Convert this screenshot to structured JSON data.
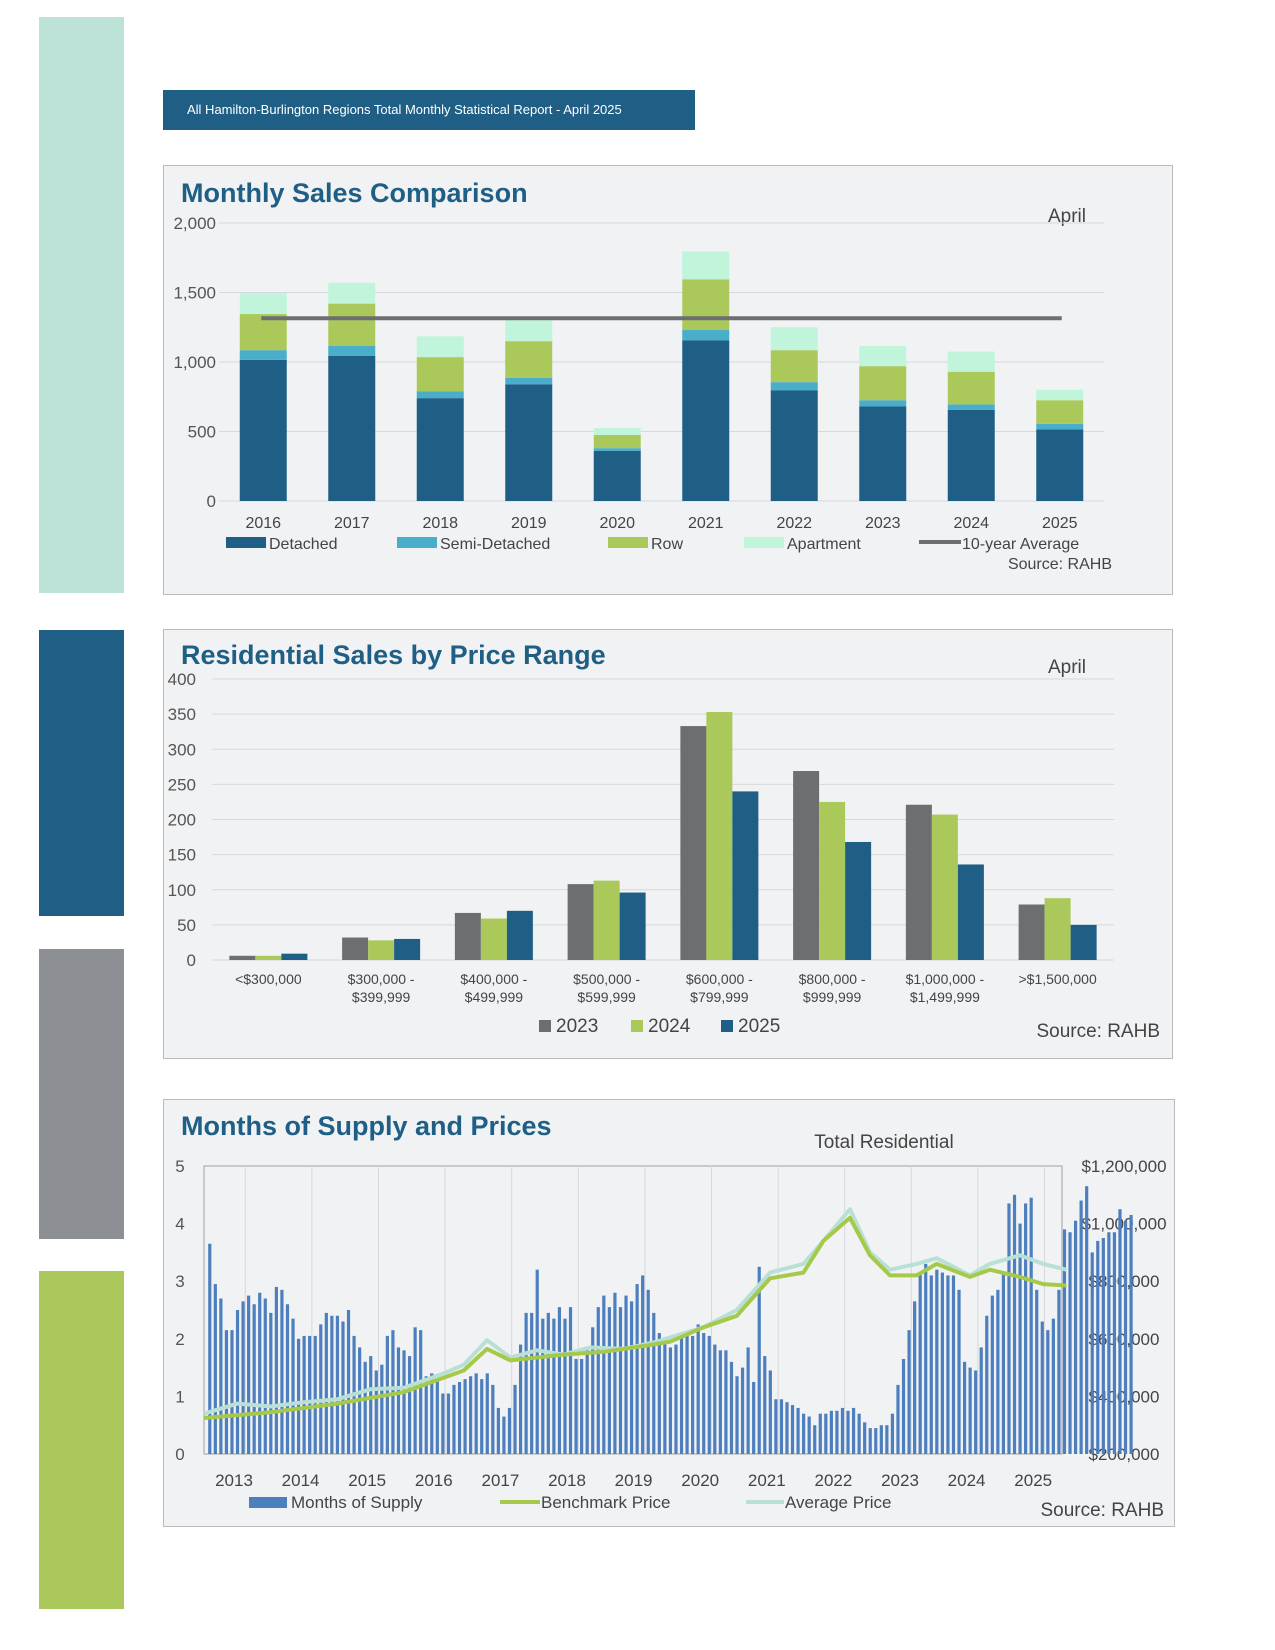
{
  "header": {
    "title": "All Hamilton-Burlington Regions Total Monthly Statistical Report - April 2025"
  },
  "colors": {
    "side_bars": [
      "#bde3d8",
      "#1f5f86",
      "#8c9094",
      "#abc95a"
    ],
    "detached": "#1f5f86",
    "semi_detached": "#4aaecb",
    "row": "#abc95a",
    "apartment": "#c0f5dc",
    "average_line": "#6d6e70",
    "y2023": "#6d6e70",
    "y2024": "#abc95a",
    "y2025": "#1f5f86",
    "supply": "#4d7fbe",
    "benchmark": "#a6c94a",
    "average_price": "#b8e0d4"
  },
  "panels": {
    "sales": {
      "title": "Monthly Sales Comparison",
      "subtitle": "April",
      "source": "Source: RAHB"
    },
    "price_range": {
      "title": "Residential Sales by Price Range",
      "subtitle": "April",
      "source": "Source: RAHB"
    },
    "supply": {
      "title": "Months of Supply and Prices",
      "subtitle": "Total Residential",
      "source": "Source: RAHB"
    }
  },
  "chart_data": [
    {
      "type": "bar",
      "stacked": true,
      "title": "Monthly Sales Comparison",
      "subtitle": "April",
      "categories": [
        "2016",
        "2017",
        "2018",
        "2019",
        "2020",
        "2021",
        "2022",
        "2023",
        "2024",
        "2025"
      ],
      "series": [
        {
          "name": "Detached",
          "values": [
            1015,
            1045,
            740,
            840,
            360,
            1155,
            795,
            680,
            655,
            515
          ]
        },
        {
          "name": "Semi-Detached",
          "values": [
            70,
            70,
            50,
            45,
            20,
            75,
            60,
            45,
            40,
            40
          ]
        },
        {
          "name": "Row",
          "values": [
            260,
            305,
            245,
            265,
            95,
            365,
            230,
            245,
            235,
            170
          ]
        },
        {
          "name": "Apartment",
          "values": [
            150,
            150,
            150,
            150,
            50,
            200,
            165,
            145,
            145,
            75
          ]
        }
      ],
      "average": {
        "name": "10-year Average",
        "value": 1315
      },
      "ylim": [
        0,
        2000
      ],
      "yticks": [
        0,
        500,
        1000,
        1500,
        2000
      ],
      "ytick_labels": [
        "0",
        "500",
        "1,000",
        "1,500",
        "2,000"
      ],
      "legend": "bottom",
      "grid": true,
      "source": "Source: RAHB"
    },
    {
      "type": "bar",
      "title": "Residential Sales by Price Range",
      "subtitle": "April",
      "categories": [
        "<$300,000",
        "$300,000 -\n$399,999",
        "$400,000 -\n$499,999",
        "$500,000 -\n$599,999",
        "$600,000 -\n$799,999",
        "$800,000 -\n$999,999",
        "$1,000,000 -\n$1,499,999",
        ">$1,500,000"
      ],
      "series": [
        {
          "name": "2023",
          "values": [
            6,
            32,
            67,
            108,
            333,
            269,
            221,
            79
          ]
        },
        {
          "name": "2024",
          "values": [
            6,
            28,
            59,
            113,
            353,
            225,
            207,
            88
          ]
        },
        {
          "name": "2025",
          "values": [
            9,
            30,
            70,
            96,
            240,
            168,
            136,
            50
          ]
        }
      ],
      "ylim": [
        0,
        400
      ],
      "yticks": [
        0,
        50,
        100,
        150,
        200,
        250,
        300,
        350,
        400
      ],
      "legend": "bottom",
      "grid": true,
      "source": "Source: RAHB"
    },
    {
      "type": "bar+line",
      "title": "Months of Supply and Prices",
      "subtitle": "Total Residential",
      "x_start": "2012-12",
      "x_labels": [
        "2013",
        "2014",
        "2015",
        "2016",
        "2017",
        "2018",
        "2019",
        "2020",
        "2021",
        "2022",
        "2023",
        "2024",
        "2025"
      ],
      "series": [
        {
          "name": "Months of Supply",
          "type": "bar",
          "axis": "left",
          "values": [
            3.65,
            2.95,
            2.7,
            2.15,
            2.15,
            2.5,
            2.65,
            2.75,
            2.6,
            2.8,
            2.7,
            2.45,
            2.9,
            2.85,
            2.6,
            2.35,
            2.0,
            2.05,
            2.05,
            2.05,
            2.25,
            2.45,
            2.4,
            2.4,
            2.3,
            2.5,
            2.05,
            1.85,
            1.6,
            1.7,
            1.45,
            1.55,
            2.05,
            2.15,
            1.85,
            1.8,
            1.7,
            2.2,
            2.15,
            1.35,
            1.4,
            1.3,
            1.05,
            1.05,
            1.2,
            1.25,
            1.3,
            1.35,
            1.4,
            1.3,
            1.4,
            1.2,
            0.8,
            0.65,
            0.8,
            1.2,
            1.9,
            2.45,
            2.45,
            3.2,
            2.35,
            2.45,
            2.35,
            2.55,
            2.35,
            2.55,
            1.65,
            1.65,
            1.8,
            2.2,
            2.55,
            2.75,
            2.55,
            2.8,
            2.55,
            2.75,
            2.65,
            2.95,
            3.1,
            2.85,
            2.45,
            2.1,
            1.95,
            1.85,
            1.9,
            2.05,
            2.1,
            2.05,
            2.25,
            2.1,
            2.05,
            1.9,
            1.8,
            1.8,
            1.6,
            1.35,
            1.5,
            1.85,
            1.25,
            3.25,
            1.7,
            1.45,
            0.95,
            0.95,
            0.9,
            0.85,
            0.8,
            0.7,
            0.65,
            0.5,
            0.7,
            0.7,
            0.75,
            0.75,
            0.8,
            0.75,
            0.8,
            0.7,
            0.55,
            0.45,
            0.45,
            0.5,
            0.5,
            0.7,
            1.2,
            1.65,
            2.15,
            2.65,
            3.15,
            3.3,
            3.1,
            3.2,
            3.15,
            3.1,
            3.1,
            2.85,
            1.6,
            1.5,
            1.45,
            1.85,
            2.4,
            2.75,
            2.85,
            3.15,
            4.35,
            4.5,
            4.0,
            4.35,
            4.45,
            2.85,
            2.3,
            2.15,
            2.35,
            2.85,
            3.9,
            3.85,
            4.05,
            4.4,
            4.65,
            3.5,
            3.7,
            3.75,
            3.85,
            3.85,
            4.25,
            4.05,
            4.15
          ]
        },
        {
          "name": "Benchmark Price",
          "type": "line",
          "axis": "right",
          "points": [
            [
              2013,
              325000
            ],
            [
              2014,
              345000
            ],
            [
              2015,
              375000
            ],
            [
              2016,
              415000
            ],
            [
              2016.9,
              490000
            ],
            [
              2017.25,
              565000
            ],
            [
              2017.6,
              525000
            ],
            [
              2018.4,
              545000
            ],
            [
              2019.0,
              555000
            ],
            [
              2019.6,
              575000
            ],
            [
              2020.0,
              590000
            ],
            [
              2020.5,
              640000
            ],
            [
              2021.0,
              680000
            ],
            [
              2021.5,
              810000
            ],
            [
              2022.0,
              830000
            ],
            [
              2022.3,
              940000
            ],
            [
              2022.7,
              1020000
            ],
            [
              2023.0,
              890000
            ],
            [
              2023.3,
              820000
            ],
            [
              2023.7,
              820000
            ],
            [
              2024.0,
              860000
            ],
            [
              2024.5,
              815000
            ],
            [
              2024.8,
              840000
            ],
            [
              2025.25,
              815000
            ],
            [
              2025.6,
              790000
            ],
            [
              2025.95,
              785000
            ]
          ]
        },
        {
          "name": "Average Price",
          "type": "line",
          "axis": "right",
          "points": [
            [
              2013,
              340000
            ],
            [
              2013.5,
              375000
            ],
            [
              2014,
              365000
            ],
            [
              2014.5,
              380000
            ],
            [
              2015,
              390000
            ],
            [
              2015.5,
              425000
            ],
            [
              2016,
              430000
            ],
            [
              2016.6,
              480000
            ],
            [
              2016.9,
              510000
            ],
            [
              2017.25,
              595000
            ],
            [
              2017.6,
              535000
            ],
            [
              2018.0,
              560000
            ],
            [
              2018.4,
              545000
            ],
            [
              2018.8,
              570000
            ],
            [
              2019.3,
              565000
            ],
            [
              2019.8,
              590000
            ],
            [
              2020.0,
              605000
            ],
            [
              2020.5,
              640000
            ],
            [
              2021.0,
              700000
            ],
            [
              2021.5,
              830000
            ],
            [
              2022.0,
              860000
            ],
            [
              2022.3,
              940000
            ],
            [
              2022.7,
              1050000
            ],
            [
              2023.0,
              900000
            ],
            [
              2023.3,
              840000
            ],
            [
              2023.7,
              860000
            ],
            [
              2024.0,
              880000
            ],
            [
              2024.5,
              820000
            ],
            [
              2024.8,
              860000
            ],
            [
              2025.25,
              890000
            ],
            [
              2025.6,
              860000
            ],
            [
              2025.95,
              840000
            ]
          ]
        }
      ],
      "ylim_left": [
        0,
        5
      ],
      "yticks_left": [
        0,
        1,
        2,
        3,
        4,
        5
      ],
      "ylim_right": [
        200000,
        1200000
      ],
      "ytick_labels_right": [
        "$200,000",
        "$400,000",
        "$600,000",
        "$800,000",
        "$1,000,000",
        "$1,200,000"
      ],
      "legend": "bottom",
      "grid": "vertical",
      "source": "Source: RAHB"
    }
  ]
}
